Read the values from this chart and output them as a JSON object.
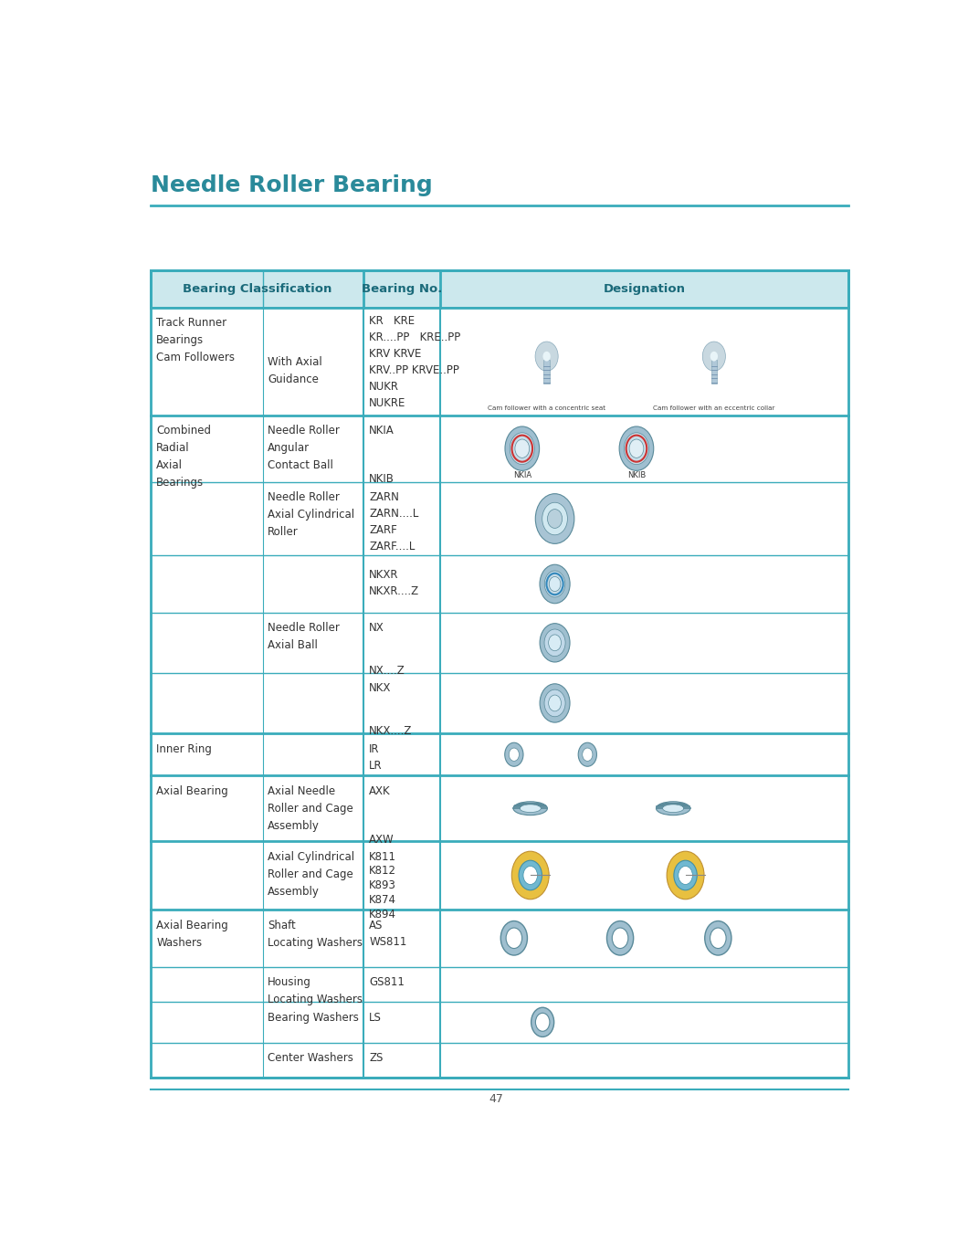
{
  "title": "Needle Roller Bearing",
  "title_color": "#2a8a9a",
  "header_bg": "#cce8ed",
  "header_border": "#3aacbb",
  "header_text_color": "#1a6a7a",
  "border_color": "#3aacbb",
  "text_color": "#333333",
  "page_number": "47",
  "columns": [
    "Bearing Classification",
    "Bearing No.",
    "Designation"
  ],
  "rows": [
    {
      "col1_lines": [
        "Track Runner",
        "Bearings",
        "Cam Followers"
      ],
      "col2_lines": [
        "With Axial",
        "Guidance"
      ],
      "col3_lines": [
        "KR   KRE",
        "KR....PP   KRE..PP",
        "KRV KRVE",
        "KRV..PP KRVE..PP",
        "NUKR",
        "NUKRE"
      ],
      "sub_captions": [
        "Cam follower with a concentric seat",
        "Cam follower with an eccentric collar"
      ]
    },
    {
      "col1_lines": [
        "Combined",
        "Radial",
        "Axial",
        "Bearings"
      ],
      "col2_lines": [
        "Needle Roller",
        "Angular",
        "Contact Ball"
      ],
      "col3_lines": [
        "NKIA",
        "",
        "NKIB"
      ],
      "sub_captions": [
        "NKIA",
        "NKIB"
      ]
    },
    {
      "col1_lines": [],
      "col2_lines": [
        "Needle Roller",
        "Axial Cylindrical",
        "Roller"
      ],
      "col3_lines": [
        "ZARN",
        "ZARN....L",
        "ZARF",
        "ZARF....L"
      ],
      "sub_captions": []
    },
    {
      "col1_lines": [],
      "col2_lines": [],
      "col3_lines": [
        "NKXR",
        "NKXR....Z"
      ],
      "sub_captions": []
    },
    {
      "col1_lines": [],
      "col2_lines": [
        "Needle Roller",
        "Axial Ball"
      ],
      "col3_lines": [
        "NX",
        "",
        "NX....Z"
      ],
      "sub_captions": []
    },
    {
      "col1_lines": [],
      "col2_lines": [],
      "col3_lines": [
        "NKX",
        "",
        "NKX....Z"
      ],
      "sub_captions": []
    },
    {
      "col1_lines": [
        "Inner Ring"
      ],
      "col2_lines": [],
      "col3_lines": [
        "IR",
        "LR"
      ],
      "sub_captions": []
    },
    {
      "col1_lines": [
        "Axial Bearing"
      ],
      "col2_lines": [
        "Axial Needle",
        "Roller and Cage",
        "Assembly"
      ],
      "col3_lines": [
        "AXK",
        "",
        "AXW"
      ],
      "sub_captions": []
    },
    {
      "col1_lines": [],
      "col2_lines": [
        "Axial Cylindrical",
        "Roller and Cage",
        "Assembly"
      ],
      "col3_lines": [
        "K811",
        "K812",
        "K893",
        "K874",
        "K894"
      ],
      "sub_captions": []
    },
    {
      "col1_lines": [
        "Axial Bearing",
        "Washers"
      ],
      "col2_lines": [
        "Shaft",
        "Locating Washers"
      ],
      "col3_lines": [
        "AS",
        "WS811"
      ],
      "sub_captions": []
    },
    {
      "col1_lines": [],
      "col2_lines": [
        "Housing",
        "Locating Washers"
      ],
      "col3_lines": [
        "GS811"
      ],
      "sub_captions": []
    },
    {
      "col1_lines": [],
      "col2_lines": [
        "Bearing Washers"
      ],
      "col3_lines": [
        "LS"
      ],
      "sub_captions": []
    },
    {
      "col1_lines": [],
      "col2_lines": [
        "Center Washers"
      ],
      "col3_lines": [
        "ZS"
      ],
      "sub_captions": []
    }
  ]
}
